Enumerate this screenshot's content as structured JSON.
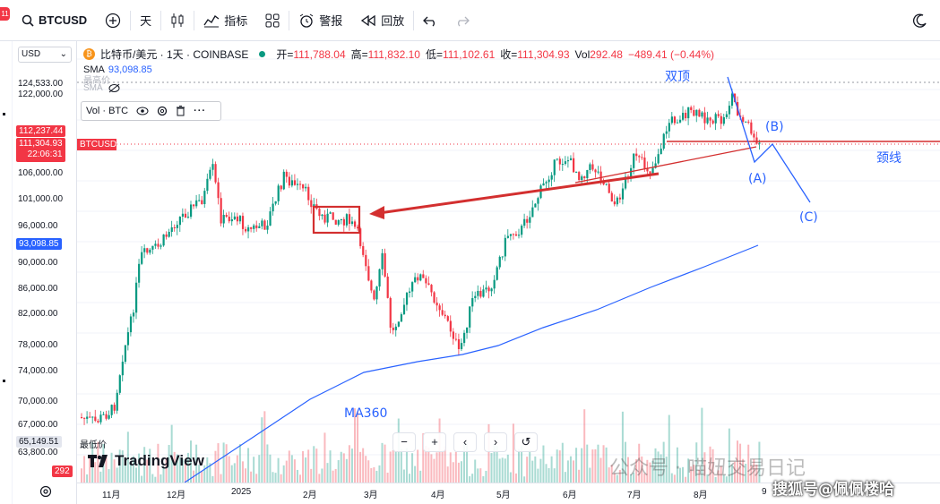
{
  "topbar": {
    "badge": "11",
    "symbol": "BTCUSD",
    "interval": "天",
    "indicators": "指标",
    "alert": "警报",
    "replay": "回放"
  },
  "legend": {
    "title": "比特币/美元 · 1天 · COINBASE",
    "open_label": "开=",
    "open": "111,788.04",
    "high_label": "高=",
    "high": "111,832.10",
    "low_label": "低=",
    "low": "111,102.61",
    "close_label": "收=",
    "close": "111,304.93",
    "vol_label": "Vol",
    "vol": "292.48",
    "change": "−489.41 (−0.44%)",
    "sma_label": "SMA",
    "sma_value": "93,098.85",
    "sma_faint": "SMA",
    "highest_label": "最高价",
    "vol_box": "Vol · BTC"
  },
  "price_axis": {
    "currency": "USD",
    "ticks": [
      "124,533.00",
      "122,000.00",
      "106,000.00",
      "101,000.00",
      "96,000.00",
      "90,000.00",
      "86,000.00",
      "82,000.00",
      "78,000.00",
      "74,000.00",
      "70,000.00",
      "67,000.00",
      "63,800.00"
    ],
    "tag_high": "112,237.44",
    "tag_price": "111,304.93",
    "tag_countdown": "22:06:31",
    "tag_sma": "93,098.85",
    "tag_low": "65,149.51",
    "lowest_label": "最低价",
    "tag_vol": "292",
    "symbol_tag": "BTCUSD"
  },
  "time_axis": [
    "11月",
    "12月",
    "2025",
    "2月",
    "3月",
    "4月",
    "5月",
    "6月",
    "7月",
    "8月",
    "9"
  ],
  "annotations": {
    "double_top": "双顶",
    "neckline": "颈线",
    "wave_a": "(A)",
    "wave_b": "(B)",
    "wave_c": "(C)",
    "ma": "MA360"
  },
  "branding": {
    "logo": "TradingView",
    "watermark1": "公众号 · 喵妞交易日记",
    "watermark2": "搜狐号@佩佩楼哈"
  },
  "colors": {
    "up": "#089981",
    "down": "#f23645",
    "sma": "#2962ff",
    "annotation_red": "#d32f2f"
  }
}
